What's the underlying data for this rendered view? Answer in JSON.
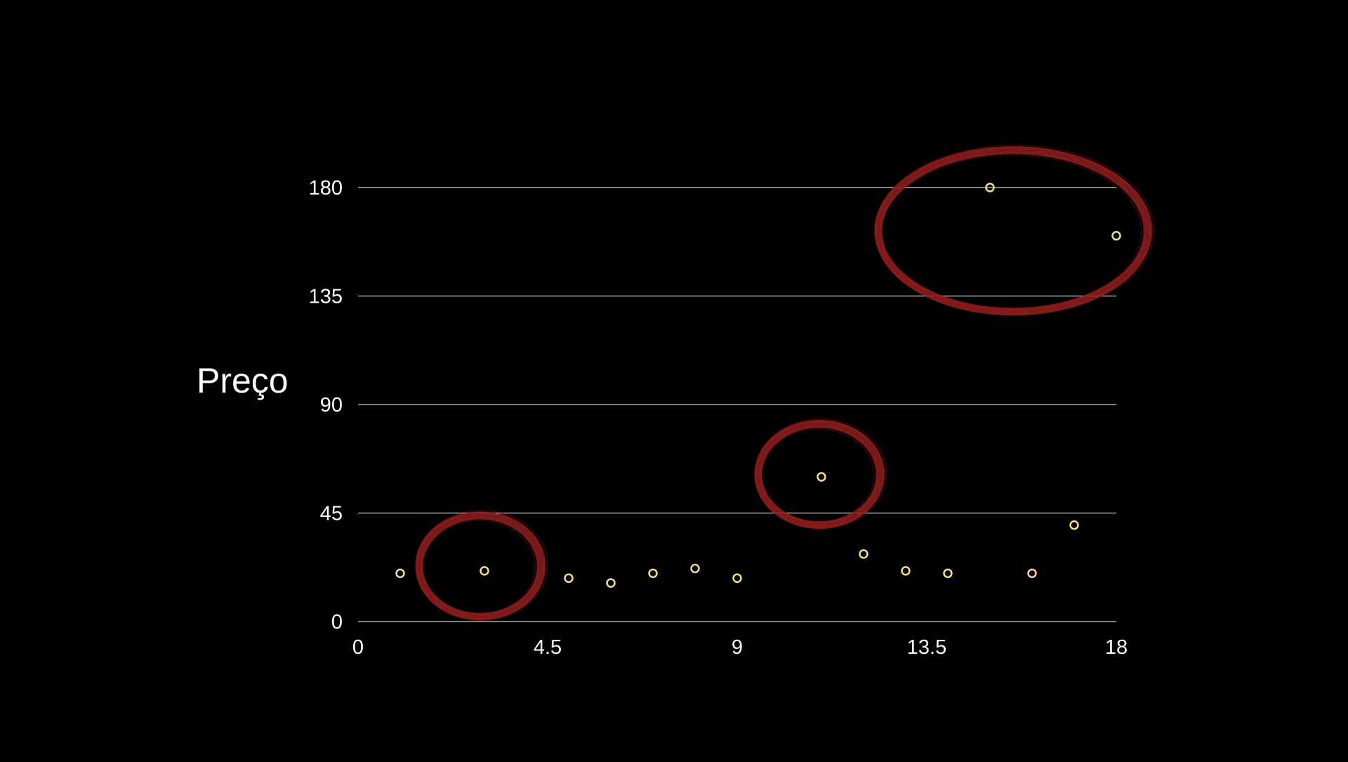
{
  "chart_data": {
    "type": "scatter",
    "title": "",
    "xlabel": "",
    "ylabel": "Preço",
    "xlim": [
      0,
      18
    ],
    "ylim": [
      0,
      180
    ],
    "x_ticks": [
      "0",
      "4.5",
      "9",
      "13.5",
      "18"
    ],
    "y_ticks": [
      "0",
      "45",
      "90",
      "135",
      "180"
    ],
    "grid": "horizontal",
    "series": [
      {
        "points": [
          {
            "x": 1,
            "y": 20
          },
          {
            "x": 3,
            "y": 21
          },
          {
            "x": 5,
            "y": 18
          },
          {
            "x": 6,
            "y": 16
          },
          {
            "x": 7,
            "y": 20
          },
          {
            "x": 8,
            "y": 22
          },
          {
            "x": 9,
            "y": 18
          },
          {
            "x": 11,
            "y": 60
          },
          {
            "x": 12,
            "y": 28
          },
          {
            "x": 13,
            "y": 21
          },
          {
            "x": 14,
            "y": 20
          },
          {
            "x": 15,
            "y": 180
          },
          {
            "x": 16,
            "y": 20
          },
          {
            "x": 17,
            "y": 40
          },
          {
            "x": 18,
            "y": 160
          }
        ]
      }
    ],
    "highlighted_regions": [
      {
        "x_center": 2.9,
        "y_center": 23,
        "rx": 1.45,
        "ry": 21
      },
      {
        "x_center": 10.95,
        "y_center": 61,
        "rx": 1.45,
        "ry": 21
      },
      {
        "x_center": 15.55,
        "y_center": 162,
        "rx": 3.2,
        "ry": 33.5
      }
    ]
  },
  "colors": {
    "background": "#000000",
    "text": "#ffffff",
    "grid": "#cfcfcf",
    "marker": "#f5dc8c",
    "highlight": "#8e1e1e"
  }
}
